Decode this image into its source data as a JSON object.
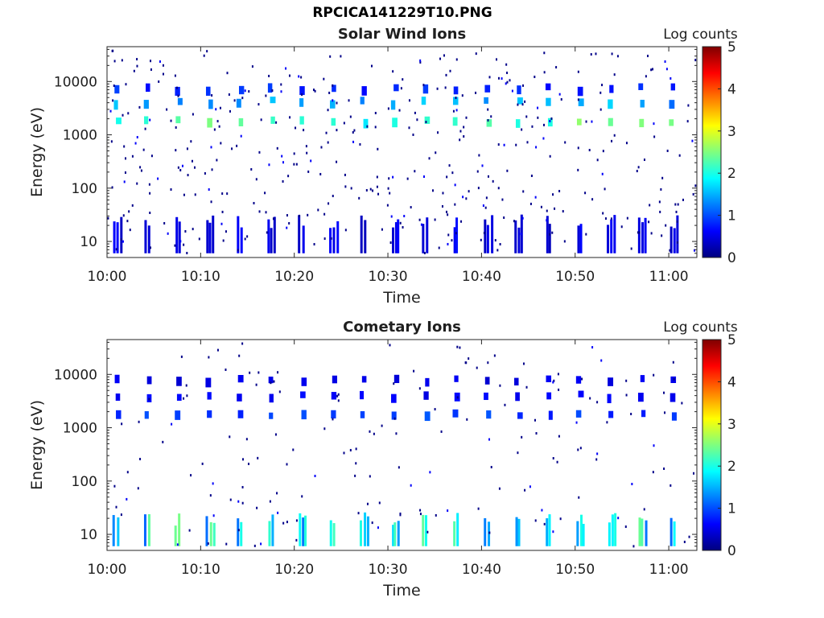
{
  "figure": {
    "title": "RPCICA141229T10.PNG"
  },
  "colors": {
    "colormap": [
      "#00007f",
      "#0000ff",
      "#007fff",
      "#00ffff",
      "#7fff7f",
      "#ffff00",
      "#ff7f00",
      "#ff0000",
      "#7f0000"
    ]
  },
  "chart_data": [
    {
      "type": "heatmap",
      "title": "Solar Wind Ions",
      "xlabel": "Time",
      "ylabel": "Energy (eV)",
      "xlim": [
        "10:00",
        "11:03"
      ],
      "xticks": [
        "10:00",
        "10:10",
        "10:20",
        "10:30",
        "10:40",
        "10:50",
        "11:00"
      ],
      "yscale": "log",
      "ylim": [
        5,
        45000
      ],
      "yticks": [
        10,
        100,
        1000,
        10000
      ],
      "ytick_labels": [
        "10",
        "100",
        "1000",
        "10000"
      ],
      "colorbar": {
        "label": "Log counts",
        "range": [
          0,
          5
        ],
        "ticks": [
          "0",
          "1",
          "2",
          "3",
          "4",
          "5"
        ]
      },
      "bursts": {
        "times_min": [
          1.0,
          4.3,
          7.6,
          10.9,
          14.2,
          17.5,
          20.8,
          24.1,
          27.4,
          30.7,
          34.0,
          37.3,
          40.6,
          43.9,
          47.2,
          50.5,
          53.8,
          57.1,
          60.4
        ],
        "high_energy_bands_eV": [
          {
            "energy": 1800,
            "level": 2.2
          },
          {
            "energy": 4200,
            "level": 1.4
          },
          {
            "energy": 7500,
            "level": 0.8
          }
        ],
        "low_energy_bars_eV": {
          "from": 6,
          "to": 25,
          "level": 0.5
        }
      }
    },
    {
      "type": "heatmap",
      "title": "Cometary Ions",
      "xlabel": "Time",
      "ylabel": "Energy (eV)",
      "xlim": [
        "10:00",
        "11:03"
      ],
      "xticks": [
        "10:00",
        "10:10",
        "10:20",
        "10:30",
        "10:40",
        "10:50",
        "11:00"
      ],
      "yscale": "log",
      "ylim": [
        5,
        45000
      ],
      "yticks": [
        10,
        100,
        1000,
        10000
      ],
      "ytick_labels": [
        "10",
        "100",
        "1000",
        "10000"
      ],
      "colorbar": {
        "label": "Log counts",
        "range": [
          0,
          5
        ],
        "ticks": [
          "0",
          "1",
          "2",
          "3",
          "4",
          "5"
        ]
      },
      "bursts": {
        "times_min": [
          1.0,
          4.3,
          7.6,
          10.9,
          14.2,
          17.5,
          20.8,
          24.1,
          27.4,
          30.7,
          34.0,
          37.3,
          40.6,
          43.9,
          47.2,
          50.5,
          53.8,
          57.1,
          60.4
        ],
        "high_energy_bands_eV": [
          {
            "energy": 1800,
            "level": 0.9
          },
          {
            "energy": 4000,
            "level": 0.6
          },
          {
            "energy": 8000,
            "level": 0.5
          }
        ],
        "low_energy_bars_eV": {
          "from": 6,
          "to": 20,
          "level": 1.8
        }
      }
    }
  ]
}
